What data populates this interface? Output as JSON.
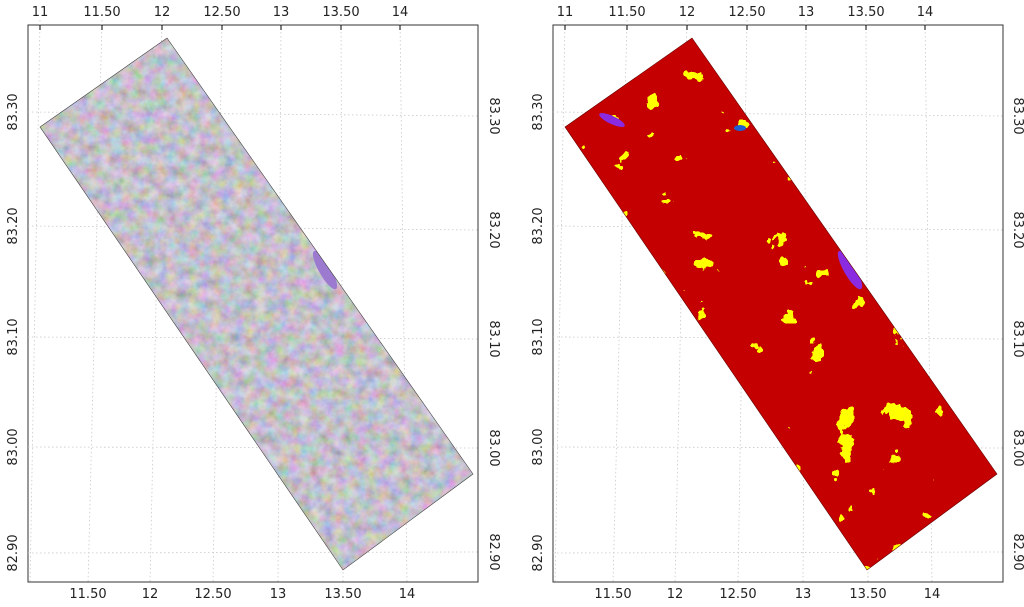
{
  "panels": [
    {
      "id": "left",
      "image_kind": "rgb-composite",
      "top_labels": [
        "11",
        "11.50",
        "12",
        "12.50",
        "13",
        "13.50",
        "14"
      ],
      "bottom_labels": [
        "11.50",
        "12",
        "12.50",
        "13",
        "13.50",
        "14"
      ],
      "left_labels": [
        "83.30",
        "83.20",
        "83.10",
        "83.00",
        "82.90"
      ],
      "right_labels": [
        "83.30",
        "83.20",
        "83.10",
        "83.00",
        "82.90"
      ]
    },
    {
      "id": "right",
      "image_kind": "classification",
      "top_labels": [
        "11",
        "11.50",
        "12",
        "12.50",
        "13",
        "13.50",
        "14"
      ],
      "bottom_labels": [
        "11.50",
        "12",
        "12.50",
        "13",
        "13.50",
        "14"
      ],
      "left_labels": [
        "83.30",
        "83.20",
        "83.10",
        "83.00",
        "82.90"
      ],
      "right_labels": [
        "83.30",
        "83.20",
        "83.10",
        "83.00",
        "82.90"
      ]
    }
  ],
  "colors": {
    "grey_green": "#5a6450",
    "lavender": "#a896c4",
    "class_red": "#c40000",
    "class_yellow": "#ffff00",
    "class_purple": "#8a2be2",
    "class_blue": "#1e5fd4"
  }
}
